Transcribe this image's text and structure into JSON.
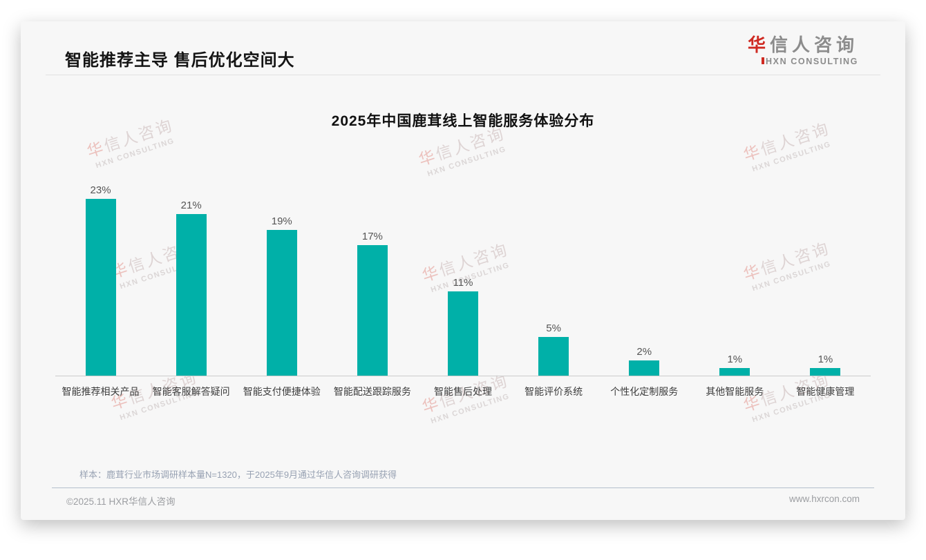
{
  "page": {
    "header_title": "智能推荐主导 售后优化空间大",
    "logo": {
      "cn_first": "华",
      "cn_rest": "信人咨询",
      "en": "HXN CONSULTING"
    },
    "note": "样本：鹿茸行业市场调研样本量N=1320，于2025年9月通过华信人咨询调研获得",
    "footer_left": "©2025.11 HXR华信人咨询",
    "footer_right": "www.hxrcon.com",
    "watermark": {
      "cn_first": "华",
      "cn_rest": "信人咨询",
      "en": "HXN CONSULTING"
    }
  },
  "chart_data": {
    "type": "bar",
    "title": "2025年中国鹿茸线上智能服务体验分布",
    "categories": [
      "智能推荐相关产品",
      "智能客服解答疑问",
      "智能支付便捷体验",
      "智能配送跟踪服务",
      "智能售后处理",
      "智能评价系统",
      "个性化定制服务",
      "其他智能服务",
      "智能健康管理"
    ],
    "values": [
      23,
      21,
      19,
      17,
      11,
      5,
      2,
      1,
      1
    ],
    "unit": "%",
    "bar_color": "#00b0a8",
    "value_labels": true,
    "xlabel": "",
    "ylabel": "",
    "ylim": [
      0,
      25
    ],
    "grid": false,
    "legend": "none"
  },
  "colors": {
    "accent_teal": "#00b0a8",
    "logo_red": "#cf2a22",
    "card_bg": "#f7f7f7",
    "note_gray": "#98a2b3"
  }
}
